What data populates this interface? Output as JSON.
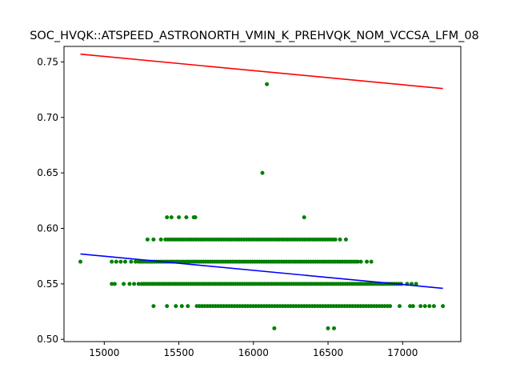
{
  "chart_data": {
    "type": "scatter",
    "title": "SOC_HVQK::ATSPEED_ASTRONORTH_VMIN_K_PREHVQK_NOM_VCCSA_LFM_08",
    "xlabel": "",
    "ylabel": "",
    "xlim": [
      14730,
      17390
    ],
    "ylim": [
      0.498,
      0.764
    ],
    "x_ticks": [
      15000,
      15500,
      16000,
      16500,
      17000
    ],
    "y_ticks": [
      0.5,
      0.55,
      0.6,
      0.65,
      0.7,
      0.75
    ],
    "grid": false,
    "colors": {
      "points": "#008000",
      "upper_line": "#ff0000",
      "lower_line": "#0000ff"
    },
    "points": [
      [
        14840,
        0.57
      ],
      [
        16090,
        0.73
      ],
      [
        16060,
        0.65
      ],
      [
        15420,
        0.61
      ],
      [
        15450,
        0.61
      ],
      [
        15500,
        0.61
      ],
      [
        15550,
        0.61
      ],
      [
        15600,
        0.61
      ],
      [
        15610,
        0.61
      ],
      [
        16340,
        0.61
      ],
      [
        16140,
        0.51
      ],
      [
        16500,
        0.51
      ],
      [
        16540,
        0.51
      ],
      [
        15330,
        0.53
      ],
      [
        15420,
        0.53
      ],
      [
        15480,
        0.53
      ],
      [
        15520,
        0.53
      ],
      [
        15560,
        0.53
      ],
      [
        16980,
        0.53
      ],
      [
        17050,
        0.53
      ],
      [
        17070,
        0.53
      ],
      [
        17120,
        0.53
      ],
      [
        17150,
        0.53
      ],
      [
        17180,
        0.53
      ],
      [
        17210,
        0.53
      ],
      [
        17270,
        0.53
      ],
      [
        15050,
        0.55
      ],
      [
        15070,
        0.55
      ],
      [
        15130,
        0.55
      ],
      [
        15170,
        0.55
      ],
      [
        15200,
        0.55
      ],
      [
        15230,
        0.55
      ],
      [
        17030,
        0.55
      ],
      [
        17060,
        0.55
      ],
      [
        17090,
        0.55
      ],
      [
        15050,
        0.57
      ],
      [
        15080,
        0.57
      ],
      [
        15110,
        0.57
      ],
      [
        15140,
        0.57
      ],
      [
        15180,
        0.57
      ],
      [
        15210,
        0.57
      ],
      [
        16720,
        0.57
      ],
      [
        16760,
        0.57
      ],
      [
        16790,
        0.57
      ],
      [
        15290,
        0.59
      ],
      [
        15330,
        0.59
      ],
      [
        15380,
        0.59
      ],
      [
        16580,
        0.59
      ],
      [
        16620,
        0.59
      ]
    ],
    "dense_bands": [
      {
        "y": 0.53,
        "x_start": 15620,
        "x_end": 16930,
        "step": 18
      },
      {
        "y": 0.55,
        "x_start": 15250,
        "x_end": 16990,
        "step": 15
      },
      {
        "y": 0.57,
        "x_start": 15230,
        "x_end": 16700,
        "step": 15
      },
      {
        "y": 0.59,
        "x_start": 15410,
        "x_end": 16560,
        "step": 17
      }
    ],
    "trend_lines": [
      {
        "color": "red",
        "x": [
          14840,
          17270
        ],
        "y": [
          0.757,
          0.726
        ]
      },
      {
        "color": "blue",
        "x": [
          14840,
          17270
        ],
        "y": [
          0.577,
          0.546
        ]
      }
    ]
  }
}
